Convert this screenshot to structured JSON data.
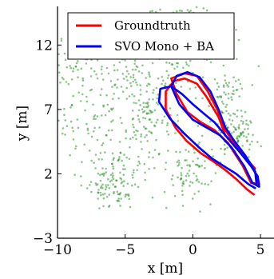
{
  "chart_data": {
    "type": "line",
    "title": "",
    "xlabel": "x [m]",
    "ylabel": "y [m]",
    "xlim": [
      -10,
      6
    ],
    "ylim": [
      -3,
      15
    ],
    "x_ticks": [
      -10,
      -5,
      0,
      5
    ],
    "x_tick_labels": [
      "−10",
      "−5",
      "0",
      "5"
    ],
    "y_ticks": [
      -3,
      2,
      7,
      12
    ],
    "y_tick_labels": [
      "−3",
      "2",
      "7",
      "12"
    ],
    "grid": false,
    "legend_position": "top-right",
    "series": [
      {
        "name": "Groundtruth",
        "color": "#ff0000",
        "points": [
          [
            4.5,
            0.4
          ],
          [
            4.0,
            0.8
          ],
          [
            3.2,
            1.6
          ],
          [
            2.4,
            2.3
          ],
          [
            1.6,
            2.9
          ],
          [
            0.6,
            3.6
          ],
          [
            -0.5,
            4.6
          ],
          [
            -1.3,
            5.6
          ],
          [
            -2.0,
            7.0
          ],
          [
            -2.0,
            8.4
          ],
          [
            -1.4,
            9.2
          ],
          [
            -0.6,
            9.4
          ],
          [
            0.3,
            9.0
          ],
          [
            1.0,
            8.0
          ],
          [
            1.9,
            6.4
          ],
          [
            2.4,
            5.0
          ],
          [
            3.2,
            4.0
          ],
          [
            4.2,
            2.9
          ],
          [
            4.7,
            1.9
          ],
          [
            4.9,
            1.2
          ],
          [
            4.3,
            1.3
          ],
          [
            3.7,
            2.6
          ],
          [
            2.6,
            4.4
          ],
          [
            1.6,
            5.4
          ],
          [
            0.6,
            6.0
          ],
          [
            -0.4,
            6.8
          ],
          [
            -1.2,
            8.2
          ],
          [
            -1.6,
            9.4
          ],
          [
            -0.6,
            9.8
          ],
          [
            0.3,
            9.6
          ],
          [
            1.1,
            8.4
          ],
          [
            1.8,
            7.0
          ],
          [
            2.3,
            5.6
          ],
          [
            3.0,
            4.4
          ],
          [
            3.8,
            3.4
          ],
          [
            4.6,
            2.4
          ]
        ]
      },
      {
        "name": "SVO Mono + BA",
        "color": "#0000ff",
        "points": [
          [
            4.6,
            0.9
          ],
          [
            4.1,
            1.2
          ],
          [
            3.2,
            2.0
          ],
          [
            2.3,
            2.6
          ],
          [
            1.4,
            3.2
          ],
          [
            0.4,
            4.1
          ],
          [
            -0.7,
            5.2
          ],
          [
            -1.7,
            6.3
          ],
          [
            -2.5,
            7.6
          ],
          [
            -2.4,
            8.6
          ],
          [
            -1.6,
            8.8
          ],
          [
            -0.8,
            8.2
          ],
          [
            0.0,
            7.4
          ],
          [
            0.9,
            6.6
          ],
          [
            1.6,
            6.0
          ],
          [
            2.4,
            5.0
          ],
          [
            3.3,
            3.9
          ],
          [
            4.3,
            2.6
          ],
          [
            4.8,
            1.8
          ],
          [
            4.9,
            1.0
          ],
          [
            4.4,
            1.3
          ],
          [
            3.8,
            2.6
          ],
          [
            2.9,
            4.0
          ],
          [
            2.0,
            5.0
          ],
          [
            1.0,
            5.6
          ],
          [
            0.0,
            6.2
          ],
          [
            -1.0,
            7.4
          ],
          [
            -1.6,
            8.8
          ],
          [
            -1.2,
            9.6
          ],
          [
            -0.4,
            9.9
          ],
          [
            0.5,
            9.5
          ],
          [
            1.3,
            8.4
          ],
          [
            1.9,
            7.0
          ],
          [
            2.4,
            5.6
          ],
          [
            3.1,
            4.5
          ],
          [
            3.9,
            3.4
          ],
          [
            4.6,
            2.2
          ],
          [
            4.7,
            1.3
          ]
        ]
      }
    ],
    "scatter_series": {
      "name": "map points",
      "color": "#008000",
      "count": 900
    }
  }
}
